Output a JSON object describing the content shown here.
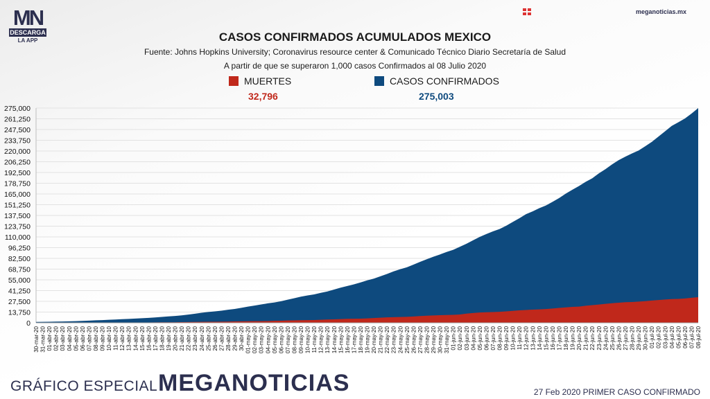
{
  "header": {
    "logo_mark": "MN",
    "logo_band": "DESCARGA",
    "logo_sub": "LA APP",
    "site": "meganoticias.mx",
    "flag_icon": "red-square-grid-icon"
  },
  "footer": {
    "label": "GRÁFICO ESPECIAL",
    "brand": "MEGANOTICIAS",
    "note": "27 Feb 2020 PRIMER CASO CONFIRMADO"
  },
  "colors": {
    "muertes": "#c0281b",
    "confirmados": "#0e4a7e",
    "brand": "#2c2f4f"
  },
  "chart_data": {
    "type": "area",
    "title": "CASOS CONFIRMADOS ACUMULADOS MEXICO",
    "source": "Fuente: Johns Hopkins University; Coronavirus resource center & Comunicado Técnico Diario Secretaría de Salud",
    "subtitle": "A partir de que se superaron 1,000 casos Confirmados al 08 Julio 2020",
    "ylim": [
      0,
      275000
    ],
    "yticks": [
      "0",
      "13,750",
      "27,500",
      "41,250",
      "55,000",
      "68,750",
      "82,500",
      "96,250",
      "110,000",
      "123,750",
      "137,500",
      "151,250",
      "165,000",
      "178,750",
      "192,500",
      "206,250",
      "220,000",
      "233,750",
      "247,500",
      "261,250",
      "275,000"
    ],
    "x": [
      "30-mar-20",
      "31-mar-20",
      "01-abr-20",
      "02-abr-20",
      "03-abr-20",
      "04-abr-20",
      "05-abr-20",
      "06-abr-20",
      "07-abr-20",
      "08-abr-20",
      "09-abr-20",
      "10-abr-10",
      "11-abr-20",
      "12-abr-20",
      "13-abr-20",
      "14-abr-20",
      "15-abr-20",
      "16-abr-20",
      "17-abr-20",
      "18-abr-20",
      "19-abr-20",
      "20-abr-20",
      "21-abr-20",
      "22-abr-20",
      "23-abr-20",
      "24-abr-20",
      "25-abr-20",
      "26-abr-20",
      "27-abr-20",
      "28-abr-20",
      "29-abr-20",
      "30-abr-20",
      "01-may-20",
      "02-may-20",
      "03-may-20",
      "04-may-20",
      "05-may-20",
      "06-may-20",
      "07-may-20",
      "08-may-20",
      "09-may-20",
      "10-may-20",
      "11-may-20",
      "12-may-20",
      "13-may-20",
      "14-may-20",
      "15-may-20",
      "16-may-20",
      "17-may-20",
      "18-may-20",
      "19-may-20",
      "20-may-20",
      "21-may-20",
      "22-may-20",
      "23-may-20",
      "24-may-20",
      "25-may-20",
      "26-may-20",
      "27-may-20",
      "28-may-20",
      "29-may-20",
      "30-may-20",
      "31-may-20",
      "01-jun-20",
      "02-jun-20",
      "03-jun-20",
      "04-jun-20",
      "05-jun-20",
      "06-jun-20",
      "07-jun-20",
      "08-jun-20",
      "09-jun-20",
      "10-jun-20",
      "11-jun-20",
      "12-jun-20",
      "13-jun-20",
      "14-jun-20",
      "15-jun-20",
      "16-jun-20",
      "17-jun-20",
      "18-jun-20",
      "19-jun-20",
      "20-jun-20",
      "21-jun-20",
      "22-jun-20",
      "23-jun-20",
      "24-jun-20",
      "25-jun-20",
      "26-jun-20",
      "27-jun-20",
      "28-jun-20",
      "29-jun-20",
      "30-jun-20",
      "01-jul-20",
      "02-jul-20",
      "03-jul-20",
      "04-jul-20",
      "05-jul-20",
      "06-jul-20",
      "07-jul-20",
      "08-jul-20"
    ],
    "series": [
      {
        "name": "CASOS CONFIRMADOS",
        "total": "275,003",
        "values": [
          1094,
          1215,
          1378,
          1510,
          1688,
          1890,
          2143,
          2439,
          2785,
          3181,
          3441,
          3844,
          4219,
          4661,
          5014,
          5399,
          5847,
          6297,
          6875,
          7497,
          8261,
          8772,
          9501,
          10544,
          11633,
          12872,
          13842,
          14677,
          15529,
          16752,
          17799,
          19224,
          20739,
          22088,
          23471,
          24905,
          26025,
          27634,
          29616,
          31522,
          33460,
          35022,
          36327,
          38324,
          40186,
          42595,
          45032,
          47144,
          49219,
          51633,
          54346,
          56594,
          59567,
          62527,
          65856,
          68620,
          71105,
          74560,
          78023,
          81400,
          84627,
          87512,
          90664,
          93435,
          97326,
          101238,
          105680,
          110026,
          113619,
          117103,
          120102,
          124301,
          129184,
          133974,
          139196,
          142690,
          146837,
          150264,
          154863,
          159793,
          165455,
          170485,
          175202,
          180545,
          185122,
          191410,
          196847,
          202951,
          208392,
          212802,
          216852,
          220657,
          226089,
          231770,
          238511,
          245251,
          252165,
          256848,
          261750,
          268008,
          275003
        ]
      },
      {
        "name": "MUERTES",
        "total": "32,796",
        "values": [
          28,
          29,
          37,
          50,
          60,
          79,
          94,
          125,
          141,
          174,
          194,
          233,
          273,
          296,
          332,
          406,
          449,
          486,
          546,
          650,
          686,
          712,
          857,
          970,
          1069,
          1221,
          1305,
          1351,
          1434,
          1569,
          1732,
          1859,
          1972,
          2061,
          2154,
          2271,
          2507,
          2704,
          2961,
          3160,
          3353,
          3465,
          3573,
          3926,
          4220,
          4477,
          4767,
          5045,
          5177,
          5332,
          5666,
          6090,
          6510,
          6989,
          7179,
          7394,
          7633,
          8134,
          8597,
          9044,
          9415,
          9779,
          9930,
          10167,
          10637,
          11729,
          12545,
          13170,
          13511,
          13699,
          14053,
          14649,
          15357,
          15944,
          16448,
          16872,
          17141,
          17580,
          18310,
          19080,
          19747,
          20394,
          20781,
          21825,
          22584,
          23377,
          24324,
          25060,
          25779,
          26381,
          26648,
          27121,
          27769,
          28510,
          29189,
          29843,
          30366,
          30639,
          31119,
          32014,
          32796
        ]
      }
    ]
  }
}
